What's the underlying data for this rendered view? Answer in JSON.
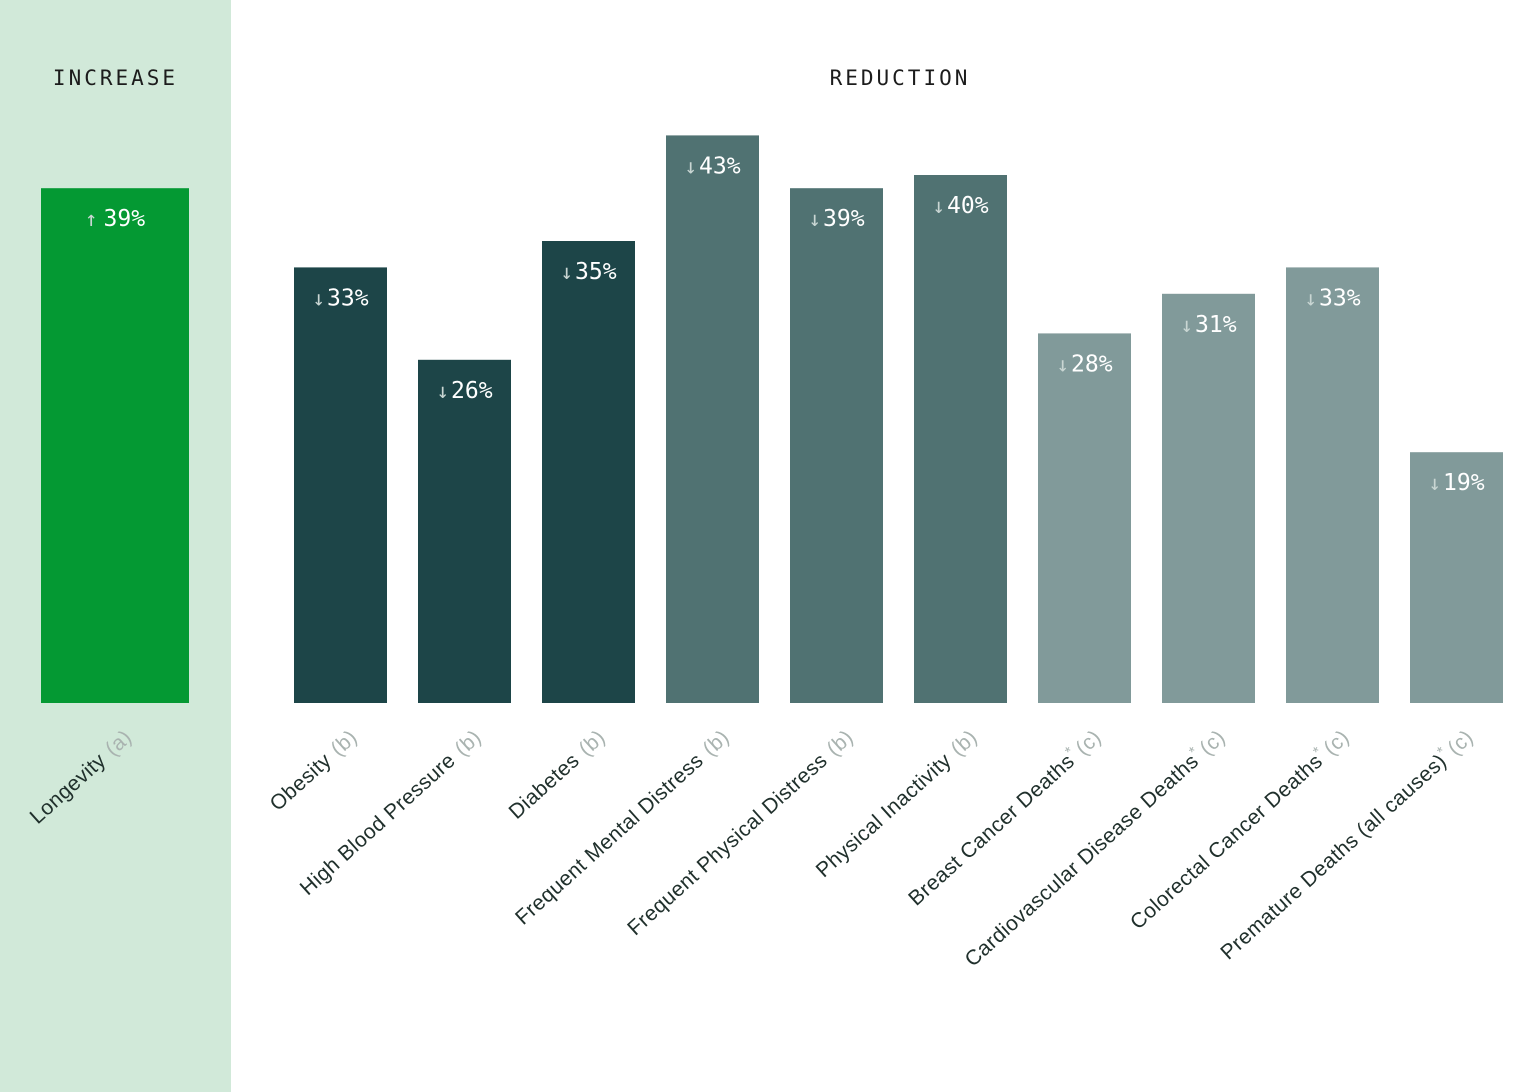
{
  "sections": {
    "increase": "INCREASE",
    "reduction": "REDUCTION"
  },
  "colors": {
    "increase_panel": "#d1e9d9",
    "increase_bar": "#049933",
    "group_b_dark": "#1d4548",
    "group_b_mid": "#507272",
    "group_c_light": "#819a9a"
  },
  "chart_data": {
    "type": "bar",
    "title": "",
    "xlabel": "",
    "ylabel": "",
    "ylim": [
      0,
      45
    ],
    "grid": false,
    "legend": "none",
    "bars": [
      {
        "category": "Longevity",
        "ref": "(a)",
        "asterisk": false,
        "value": 39,
        "direction": "up",
        "label": "39%",
        "section": "increase",
        "color": "#049933"
      },
      {
        "category": "Obesity",
        "ref": "(b)",
        "asterisk": false,
        "value": 33,
        "direction": "down",
        "label": "33%",
        "section": "reduction",
        "color": "#1d4548"
      },
      {
        "category": "High Blood Pressure",
        "ref": "(b)",
        "asterisk": false,
        "value": 26,
        "direction": "down",
        "label": "26%",
        "section": "reduction",
        "color": "#1d4548"
      },
      {
        "category": "Diabetes",
        "ref": "(b)",
        "asterisk": false,
        "value": 35,
        "direction": "down",
        "label": "35%",
        "section": "reduction",
        "color": "#1d4548"
      },
      {
        "category": "Frequent Mental Distress",
        "ref": "(b)",
        "asterisk": false,
        "value": 43,
        "direction": "down",
        "label": "43%",
        "section": "reduction",
        "color": "#507272"
      },
      {
        "category": "Frequent Physical Distress",
        "ref": "(b)",
        "asterisk": false,
        "value": 39,
        "direction": "down",
        "label": "39%",
        "section": "reduction",
        "color": "#507272"
      },
      {
        "category": "Physical Inactivity",
        "ref": "(b)",
        "asterisk": false,
        "value": 40,
        "direction": "down",
        "label": "40%",
        "section": "reduction",
        "color": "#507272"
      },
      {
        "category": "Breast Cancer Deaths",
        "ref": "(c)",
        "asterisk": true,
        "value": 28,
        "direction": "down",
        "label": "28%",
        "section": "reduction",
        "color": "#819a9a"
      },
      {
        "category": "Cardiovascular Disease Deaths",
        "ref": "(c)",
        "asterisk": true,
        "value": 31,
        "direction": "down",
        "label": "31%",
        "section": "reduction",
        "color": "#819a9a"
      },
      {
        "category": "Colorectal Cancer Deaths",
        "ref": "(c)",
        "asterisk": true,
        "value": 33,
        "direction": "down",
        "label": "33%",
        "section": "reduction",
        "color": "#819a9a"
      },
      {
        "category": "Premature Deaths (all causes)",
        "ref": "(c)",
        "asterisk": true,
        "value": 19,
        "direction": "down",
        "label": "19%",
        "section": "reduction",
        "color": "#819a9a"
      }
    ]
  }
}
